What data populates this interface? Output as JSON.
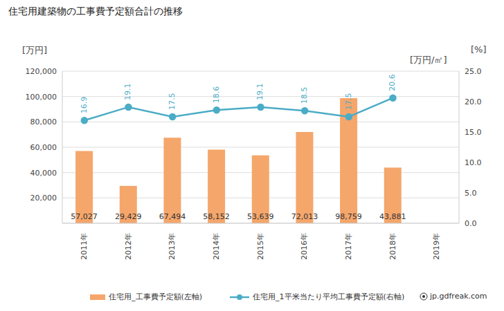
{
  "chart_data": {
    "type": "bar",
    "title": "住宅用建築物の工事費予定額合計の推移",
    "y_label": "[万円]",
    "y2_label": "[万円/㎡]",
    "annotations": [
      "[%]",
      "jp.gdfreak.com"
    ],
    "categories": [
      "2011年",
      "2012年",
      "2013年",
      "2014年",
      "2015年",
      "2016年",
      "2017年",
      "2018年",
      "2019年"
    ],
    "series": [
      {
        "name": "住宅用_工事費予定額(左軸)",
        "type": "bar",
        "color": "#f5a66b",
        "values": [
          57027,
          29429,
          67494,
          58152,
          53639,
          72013,
          98759,
          43881,
          null
        ],
        "value_labels": [
          "57,027",
          "29,429",
          "67,494",
          "58,152",
          "53,639",
          "72,013",
          "98,759",
          "43,881",
          null
        ],
        "data_labels": true
      },
      {
        "name": "住宅用_1平米当たり平均工事費予定額(右軸)",
        "type": "line",
        "axis": "y2",
        "color": "#4bacc6",
        "marker": "circle",
        "values": [
          16.9,
          19.1,
          17.5,
          18.6,
          19.1,
          18.5,
          17.5,
          20.6,
          null
        ],
        "data_labels": true
      }
    ],
    "ylim": [
      0,
      120000
    ],
    "yticks": [
      0,
      {
        "value": 20000,
        "label": "20,000"
      },
      {
        "value": 40000,
        "label": "40,000"
      },
      {
        "value": 60000,
        "label": "60,000"
      },
      {
        "value": 80000,
        "label": "80,000"
      },
      {
        "value": 100000,
        "label": "100,000"
      },
      {
        "value": 120000,
        "label": "120,000"
      }
    ],
    "y2lim": [
      0,
      25
    ],
    "y2ticks": [
      {
        "value": 0,
        "label": "0.0"
      },
      {
        "value": 5,
        "label": "5.0"
      },
      {
        "value": 10,
        "label": "10.0"
      },
      {
        "value": 15,
        "label": "15.0"
      },
      {
        "value": 20,
        "label": "20.0"
      },
      {
        "value": 25,
        "label": "25.0"
      }
    ],
    "grid": true,
    "legend": "bottom"
  }
}
